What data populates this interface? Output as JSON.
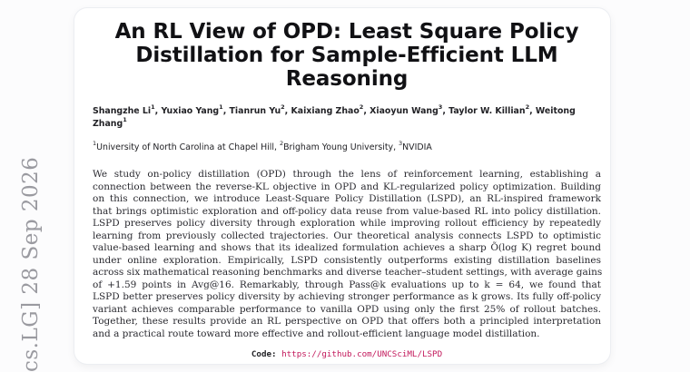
{
  "side_stamp": "cs.LG]  28 Sep 2026",
  "title": {
    "line1": "An RL View of OPD: Least Square Policy",
    "line2": "Distillation for Sample-Efficient LLM Reasoning"
  },
  "authors": [
    {
      "name": "Shangzhe Li",
      "aff": "1"
    },
    {
      "name": "Yuxiao Yang",
      "aff": "1"
    },
    {
      "name": "Tianrun Yu",
      "aff": "2"
    },
    {
      "name": "Kaixiang Zhao",
      "aff": "2"
    },
    {
      "name": "Xiaoyun Wang",
      "aff": "3"
    },
    {
      "name": "Taylor W. Killian",
      "aff": "2"
    },
    {
      "name": "Weitong Zhang",
      "aff": "1"
    }
  ],
  "affiliations": [
    {
      "num": "1",
      "name": "University of North Carolina at Chapel Hill"
    },
    {
      "num": "2",
      "name": "Brigham Young University"
    },
    {
      "num": "3",
      "name": "NVIDIA"
    }
  ],
  "abstract_lines": [
    "We study on-policy distillation (OPD) through the lens of reinforcement learning, establishing a",
    "connection between the reverse-KL objective in OPD and KL-regularized policy optimization. Building",
    "on this connection, we introduce Least-Square Policy Distillation (LSPD), an RL-inspired framework",
    "that brings optimistic exploration and off-policy data reuse from value-based RL into policy distillation.",
    "LSPD preserves policy diversity through exploration while improving rollout efficiency by repeatedly",
    "learning from previously collected trajectories. Our theoretical analysis connects LSPD to optimistic",
    "value-based learning and shows that its idealized formulation achieves a sharp Õ(log K) regret bound",
    "under online exploration. Empirically, LSPD consistently outperforms existing distillation baselines",
    "across six mathematical reasoning benchmarks and diverse teacher–student settings, with average gains",
    "of +1.59 points in Avg@16. Remarkably, through Pass@k evaluations up to k = 64, we found that",
    "LSPD better preserves policy diversity by achieving stronger performance as k grows. Its fully off-policy",
    "variant achieves comparable performance to vanilla OPD using only the first 25% of rollout batches.",
    "Together, these results provide an RL perspective on OPD that offers both a principled interpretation",
    "and a practical route toward more effective and rollout-efficient language model distillation."
  ],
  "code": {
    "label": "Code:",
    "url": "https://github.com/UNCSciML/LSPD"
  },
  "colors": {
    "link": "#c2185b",
    "stamp": "#9a9aa0"
  }
}
